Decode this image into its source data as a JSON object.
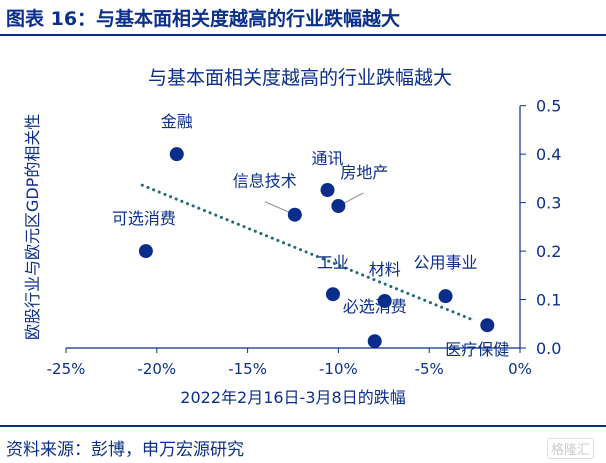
{
  "header": {
    "figure_title": "图表 16：与基本面相关度越高的行业跌幅越大"
  },
  "footer": {
    "source": "资料来源：彭博，申万宏源研究",
    "watermark": "格隆汇"
  },
  "colors": {
    "accent": "#0b2f8a",
    "point": "#0a2d8c",
    "trend": "#1f6b74",
    "leader": "#999999"
  },
  "chart_data": {
    "type": "scatter",
    "title": "与基本面相关度越高的行业跌幅越大",
    "xlabel": "2022年2月16日-3月8日的跌幅",
    "ylabel": "欧股行业与欧元区GDP的相关性",
    "xlim": [
      -25,
      0
    ],
    "ylim": [
      0,
      0.5
    ],
    "xticks": [
      -25,
      -20,
      -15,
      -10,
      -5,
      0
    ],
    "xtick_labels": [
      "-25%",
      "-20%",
      "-15%",
      "-10%",
      "-5%",
      "0%"
    ],
    "yticks": [
      0,
      0.1,
      0.2,
      0.3,
      0.4,
      0.5
    ],
    "ytick_labels": [
      "0.0",
      "0.1",
      "0.2",
      "0.3",
      "0.4",
      "0.5"
    ],
    "y_axis_side": "right",
    "grid": false,
    "points": [
      {
        "label": "金融",
        "x": -18.9,
        "y": 0.4
      },
      {
        "label": "可选消费",
        "x": -20.6,
        "y": 0.2
      },
      {
        "label": "信息技术",
        "x": -12.4,
        "y": 0.275
      },
      {
        "label": "通讯",
        "x": -10.6,
        "y": 0.326
      },
      {
        "label": "房地产",
        "x": -10.0,
        "y": 0.293
      },
      {
        "label": "工业",
        "x": -10.3,
        "y": 0.111
      },
      {
        "label": "材料",
        "x": -7.45,
        "y": 0.097
      },
      {
        "label": "必选消费",
        "x": -8.0,
        "y": 0.014
      },
      {
        "label": "公用事业",
        "x": -4.1,
        "y": 0.107
      },
      {
        "label": "医疗保健",
        "x": -1.8,
        "y": 0.047
      }
    ],
    "trendline": {
      "style": "dotted",
      "from": [
        -20.8,
        0.336
      ],
      "to": [
        -2.6,
        0.058
      ]
    }
  }
}
